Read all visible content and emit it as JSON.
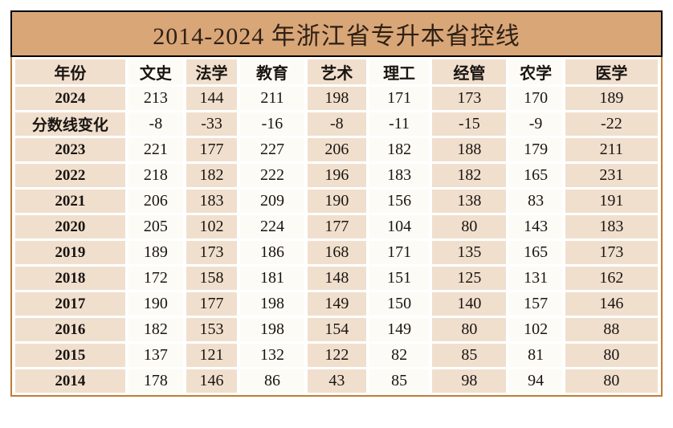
{
  "title": "2014-2024 年浙江省专升本省控线",
  "chart_data": {
    "type": "table",
    "title": "2014-2024 年浙江省专升本省控线",
    "columns": [
      "年份",
      "文史",
      "法学",
      "教育",
      "艺术",
      "理工",
      "经管",
      "农学",
      "医学"
    ],
    "rows": [
      {
        "label": "2024",
        "values": [
          213,
          144,
          211,
          198,
          171,
          173,
          170,
          189
        ]
      },
      {
        "label": "分数线变化",
        "values": [
          -8,
          -33,
          -16,
          -8,
          -11,
          -15,
          -9,
          -22
        ]
      },
      {
        "label": "2023",
        "values": [
          221,
          177,
          227,
          206,
          182,
          188,
          179,
          211
        ]
      },
      {
        "label": "2022",
        "values": [
          218,
          182,
          222,
          196,
          183,
          182,
          165,
          231
        ]
      },
      {
        "label": "2021",
        "values": [
          206,
          183,
          209,
          190,
          156,
          138,
          83,
          191
        ]
      },
      {
        "label": "2020",
        "values": [
          205,
          102,
          224,
          177,
          104,
          80,
          143,
          183
        ]
      },
      {
        "label": "2019",
        "values": [
          189,
          173,
          186,
          168,
          171,
          135,
          165,
          173
        ]
      },
      {
        "label": "2018",
        "values": [
          172,
          158,
          181,
          148,
          151,
          125,
          131,
          162
        ]
      },
      {
        "label": "2017",
        "values": [
          190,
          177,
          198,
          149,
          150,
          140,
          157,
          146
        ]
      },
      {
        "label": "2016",
        "values": [
          182,
          153,
          198,
          154,
          149,
          80,
          102,
          88
        ]
      },
      {
        "label": "2015",
        "values": [
          137,
          121,
          132,
          122,
          82,
          85,
          81,
          80
        ]
      },
      {
        "label": "2014",
        "values": [
          178,
          146,
          86,
          43,
          85,
          98,
          94,
          80
        ]
      }
    ]
  },
  "colors": {
    "title_bg": "#d9a678",
    "title_text": "#2e2014",
    "title_border": "#000000",
    "table_border": "#c07c35",
    "cell_tan": "#f1dfce",
    "cell_white": "#fdfbf6",
    "gap_white": "#ffffff",
    "text": "#191511"
  }
}
